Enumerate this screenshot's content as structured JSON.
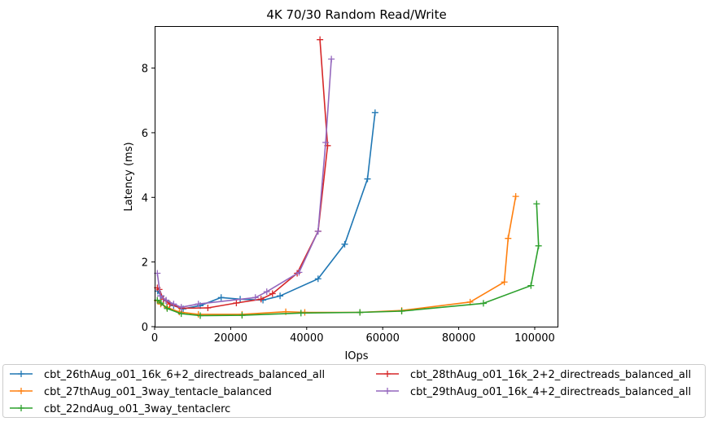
{
  "chart_data": {
    "type": "line",
    "title": "4K 70/30  Random Read/Write",
    "xlabel": "IOps",
    "ylabel": "Latency (ms)",
    "xlim": [
      0,
      106000
    ],
    "ylim": [
      0,
      9.3
    ],
    "xticks": [
      0,
      20000,
      40000,
      60000,
      80000,
      100000
    ],
    "yticks": [
      0,
      2,
      4,
      6,
      8
    ],
    "grid": false,
    "legend_position": "below plot, 2 columns",
    "series": [
      {
        "name": "cbt_26thAug_o01_16k_6+2_directreads_balanced_all",
        "color": "#1f77b4",
        "points": [
          [
            800,
            1.1
          ],
          [
            1700,
            0.95
          ],
          [
            3000,
            0.8
          ],
          [
            5000,
            0.65
          ],
          [
            7500,
            0.55
          ],
          [
            12000,
            0.65
          ],
          [
            17500,
            0.9
          ],
          [
            22500,
            0.85
          ],
          [
            28500,
            0.82
          ],
          [
            33000,
            0.95
          ],
          [
            43000,
            1.48
          ],
          [
            50000,
            2.55
          ],
          [
            56000,
            4.57
          ],
          [
            58000,
            6.62
          ]
        ]
      },
      {
        "name": "cbt_27thAug_o01_3way_tentacle_balanced",
        "color": "#ff7f0e",
        "points": [
          [
            700,
            0.8
          ],
          [
            1600,
            0.7
          ],
          [
            3200,
            0.6
          ],
          [
            6500,
            0.45
          ],
          [
            11500,
            0.38
          ],
          [
            23000,
            0.38
          ],
          [
            34500,
            0.46
          ],
          [
            39500,
            0.44
          ],
          [
            54000,
            0.44
          ],
          [
            65000,
            0.5
          ],
          [
            83000,
            0.76
          ],
          [
            92000,
            1.38
          ],
          [
            93000,
            2.73
          ],
          [
            95000,
            4.03
          ]
        ]
      },
      {
        "name": "cbt_22ndAug_o01_3way_tentaclerc",
        "color": "#2ca02c",
        "points": [
          [
            700,
            0.82
          ],
          [
            1700,
            0.73
          ],
          [
            3300,
            0.56
          ],
          [
            7000,
            0.4
          ],
          [
            12000,
            0.34
          ],
          [
            23000,
            0.35
          ],
          [
            38500,
            0.42
          ],
          [
            54000,
            0.44
          ],
          [
            65000,
            0.48
          ],
          [
            86500,
            0.72
          ],
          [
            99000,
            1.27
          ],
          [
            101000,
            2.5
          ],
          [
            100500,
            3.8
          ]
        ]
      },
      {
        "name": "cbt_28thAug_o01_16k_2+2_directreads_balanced_all",
        "color": "#d62728",
        "points": [
          [
            700,
            1.2
          ],
          [
            1200,
            1.15
          ],
          [
            2300,
            0.85
          ],
          [
            4000,
            0.7
          ],
          [
            7000,
            0.57
          ],
          [
            14000,
            0.58
          ],
          [
            21500,
            0.73
          ],
          [
            28000,
            0.85
          ],
          [
            31000,
            1.02
          ],
          [
            37500,
            1.65
          ],
          [
            43000,
            2.95
          ],
          [
            45500,
            5.6
          ],
          [
            43500,
            8.88
          ]
        ]
      },
      {
        "name": "cbt_29thAug_o01_16k_4+2_directreads_balanced_all",
        "color": "#9467bd",
        "points": [
          [
            700,
            1.65
          ],
          [
            1500,
            0.95
          ],
          [
            3000,
            0.82
          ],
          [
            5000,
            0.7
          ],
          [
            7000,
            0.6
          ],
          [
            11500,
            0.7
          ],
          [
            26500,
            0.9
          ],
          [
            29500,
            1.08
          ],
          [
            38000,
            1.68
          ],
          [
            43000,
            2.95
          ],
          [
            45000,
            5.7
          ],
          [
            46500,
            8.28
          ]
        ]
      }
    ]
  }
}
